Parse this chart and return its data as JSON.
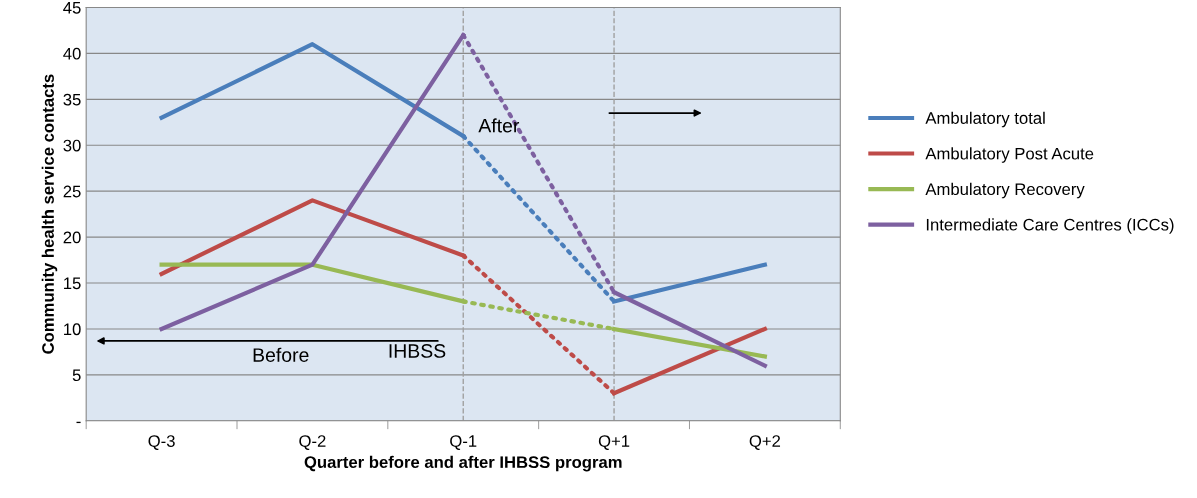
{
  "chart_data": {
    "type": "line",
    "xlabel": "Quarter before and after IHBSS program",
    "ylabel": "Community health service contacts",
    "categories": [
      "Q-3",
      "Q-2",
      "Q-1",
      "Q+1",
      "Q+2"
    ],
    "series": [
      {
        "name": "Ambulatory total",
        "color": "#4a7ebb",
        "values": [
          33,
          41,
          31,
          null,
          null
        ]
      },
      {
        "color": "#4a7ebb",
        "line_style": "dotted",
        "values": [
          null,
          null,
          31,
          13,
          null
        ]
      },
      {
        "color": "#4a7ebb",
        "values": [
          null,
          null,
          null,
          13,
          17
        ]
      },
      {
        "name": "Ambulatory Post Acute",
        "color": "#be4b48",
        "values": [
          16,
          24,
          18,
          null,
          null
        ]
      },
      {
        "color": "#be4b48",
        "line_style": "dotted",
        "values": [
          null,
          null,
          18,
          3,
          null
        ]
      },
      {
        "color": "#be4b48",
        "values": [
          null,
          null,
          null,
          3,
          10
        ]
      },
      {
        "name": "Ambulatory Recovery",
        "color": "#98b954",
        "values": [
          17,
          17,
          13,
          null,
          null
        ]
      },
      {
        "color": "#98b954",
        "line_style": "dotted",
        "values": [
          null,
          null,
          13,
          10,
          null
        ]
      },
      {
        "color": "#98b954",
        "values": [
          null,
          null,
          null,
          10,
          7
        ]
      },
      {
        "name": "Intermediate Care Centres (ICCs)",
        "color": "#7d60a0",
        "values": [
          10,
          17,
          42,
          null,
          null
        ]
      },
      {
        "color": "#7d60a0",
        "line_style": "dotted",
        "values": [
          null,
          null,
          42,
          14,
          null
        ]
      },
      {
        "color": "#7d60a0",
        "values": [
          null,
          null,
          null,
          14,
          6
        ]
      }
    ],
    "ylim": [
      0,
      45
    ],
    "yticks": [
      {
        "value": 0,
        "label": "-"
      },
      5,
      10,
      15,
      20,
      25,
      30,
      35,
      40,
      45
    ],
    "grid": "y",
    "legend": "right",
    "marker": "none",
    "line_style": "solid",
    "ref_lines": [
      {
        "axis": "x",
        "value": "Q-1",
        "color": "#a0a0a0",
        "line_style": "dashed"
      },
      {
        "axis": "x",
        "value": "Q+1",
        "color": "#a0a0a0",
        "line_style": "dashed"
      }
    ],
    "annotations": [
      "After",
      "Before",
      "IHBSS"
    ]
  }
}
